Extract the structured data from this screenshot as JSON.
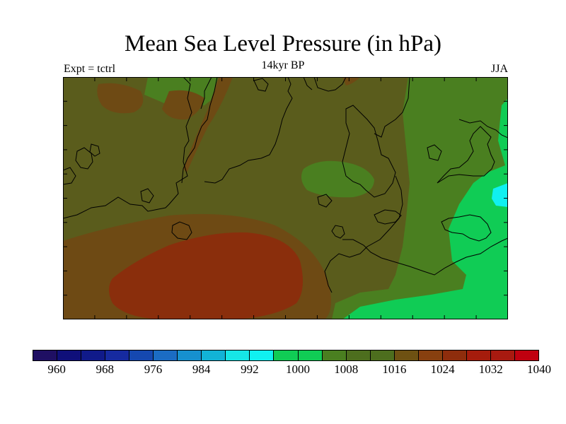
{
  "title": "Mean Sea Level Pressure (in hPa)",
  "subtitle_left": "Expt = tctrl",
  "subtitle_center": "14kyr BP",
  "subtitle_right": "JJA",
  "colorbar": {
    "colors": [
      "#1f0f63",
      "#0f0f7a",
      "#101a8a",
      "#162aa0",
      "#1548b0",
      "#1b6cc4",
      "#1690cf",
      "#12b3d6",
      "#16e6e6",
      "#10f0f0",
      "#10cc55",
      "#10cc55",
      "#4a7f20",
      "#4d6e1e",
      "#4d6e1e",
      "#6e5112",
      "#88400f",
      "#8e2d0c",
      "#a51c0c",
      "#a81a10",
      "#c0000f"
    ],
    "labels": [
      "960",
      "968",
      "976",
      "984",
      "992",
      "1000",
      "1008",
      "1016",
      "1024",
      "1032",
      "1040"
    ]
  },
  "map": {
    "field_colors": {
      "high_1016": "#5a5c1c",
      "high_1024": "#6e4a14",
      "high_1032": "#8a2e0c",
      "mid_1008": "#4a7f20",
      "low_1000": "#10cc55",
      "low_992": "#10f0f0"
    },
    "coastline_color": "#000000"
  }
}
